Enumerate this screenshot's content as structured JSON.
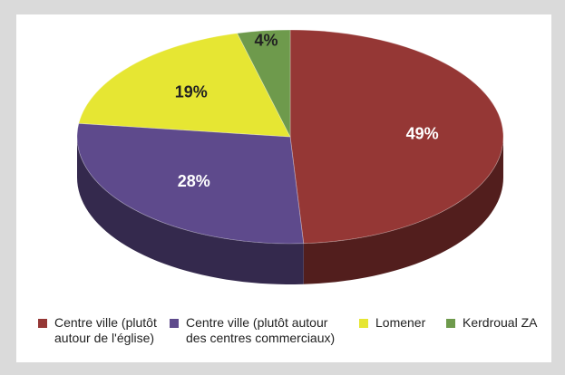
{
  "chart_data": {
    "type": "pie",
    "categories": [
      "Centre ville (plutôt autour de l'église)",
      "Centre ville (plutôt autour des centres commerciaux)",
      "Lomener",
      "Kerdroual ZA"
    ],
    "values": [
      49,
      28,
      19,
      4
    ],
    "value_labels": [
      "49%",
      "28%",
      "19%",
      "4%"
    ],
    "colors": [
      "#953735",
      "#5e4a8c",
      "#e6e633",
      "#6e9a4c"
    ],
    "legend": "bottom"
  }
}
